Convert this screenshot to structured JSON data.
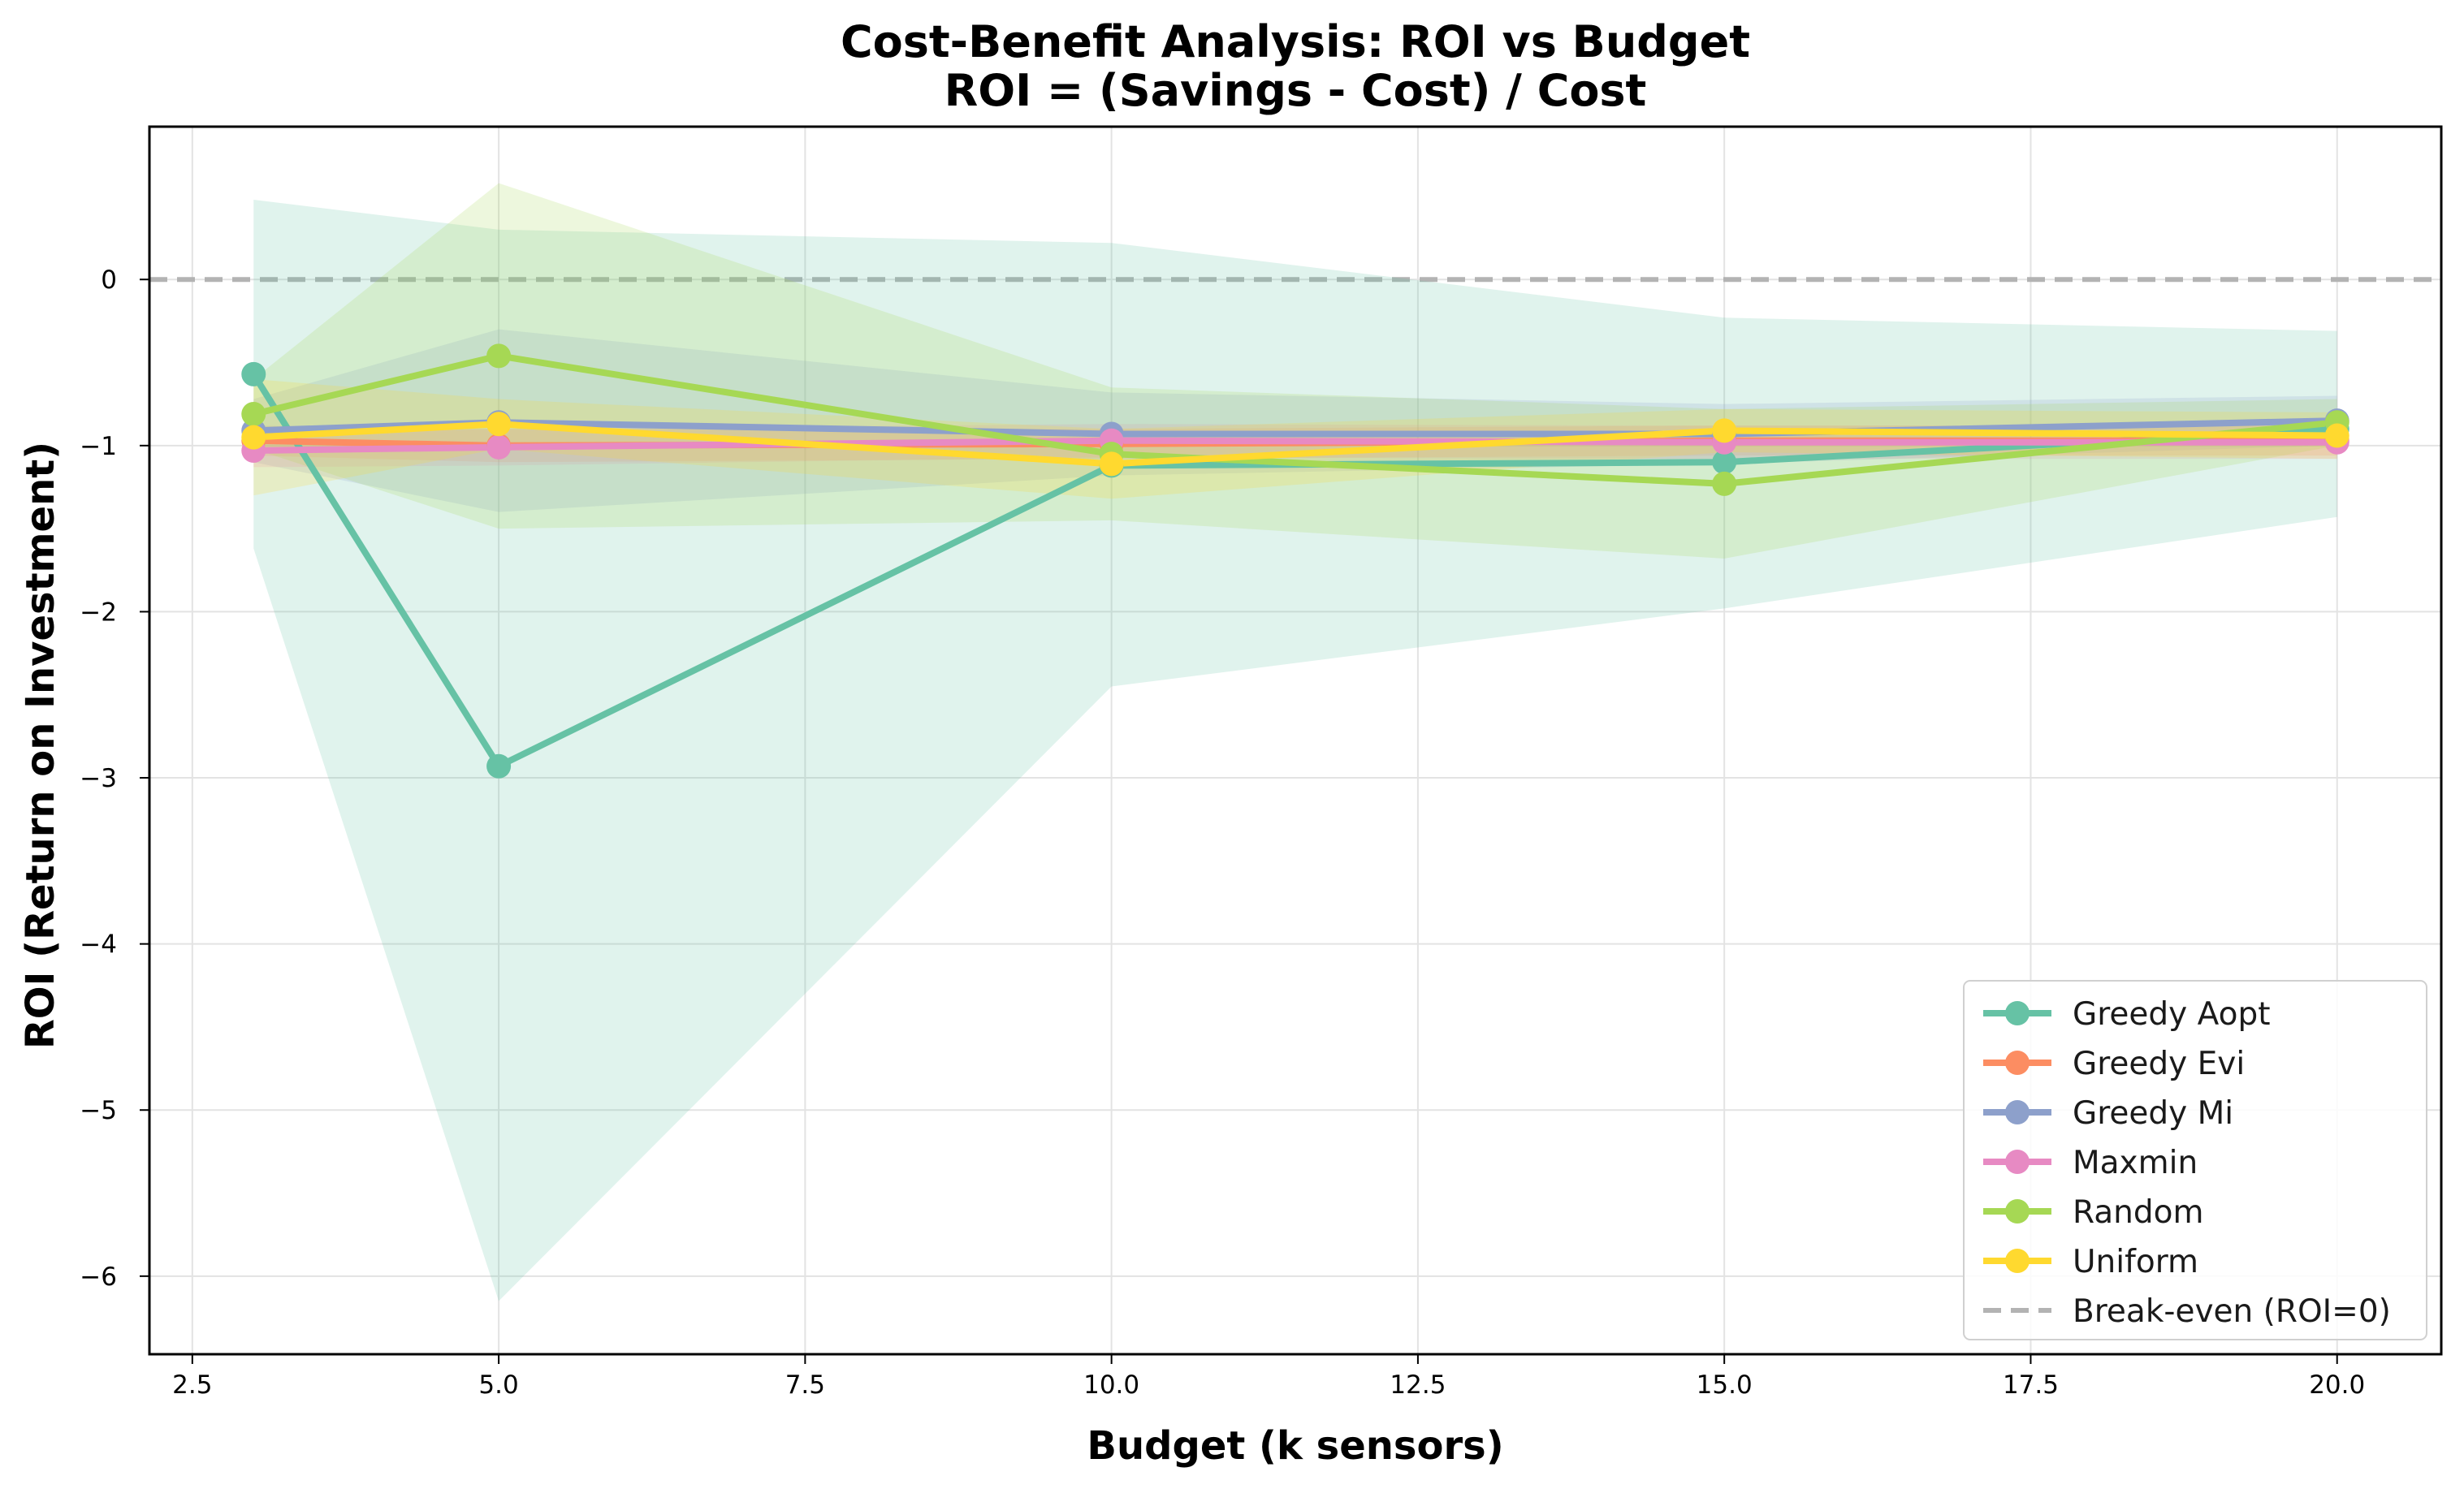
{
  "chart_data": {
    "type": "line",
    "title": "Cost-Benefit Analysis: ROI vs Budget",
    "subtitle": "ROI = (Savings - Cost) / Cost",
    "xlabel": "Budget (k sensors)",
    "ylabel": "ROI (Return on Investment)",
    "x": [
      3,
      5,
      10,
      15,
      20
    ],
    "xlim": [
      2.15,
      20.85
    ],
    "ylim": [
      -6.47,
      0.92
    ],
    "x_ticks": [
      2.5,
      5.0,
      7.5,
      10.0,
      12.5,
      15.0,
      17.5,
      20.0
    ],
    "x_tick_labels": [
      "2.5",
      "5.0",
      "7.5",
      "10.0",
      "12.5",
      "15.0",
      "17.5",
      "20.0"
    ],
    "y_ticks": [
      0,
      -1,
      -2,
      -3,
      -4,
      -5,
      -6
    ],
    "y_tick_labels": [
      "0",
      "−1",
      "−2",
      "−3",
      "−4",
      "−5",
      "−6"
    ],
    "grid": true,
    "legend_position": "bottom-right",
    "reference_line": {
      "name": "Break-even (ROI=0)",
      "y": 0,
      "color": "#b3b3b3",
      "style": "dashed"
    },
    "series": [
      {
        "name": "Greedy Aopt",
        "color": "#66c2a5",
        "values": [
          -0.57,
          -2.93,
          -1.12,
          -1.1,
          -0.9
        ],
        "band_upper": [
          0.48,
          0.3,
          0.22,
          -0.23,
          -0.31
        ],
        "band_lower": [
          -1.62,
          -6.15,
          -2.45,
          -1.98,
          -1.43
        ]
      },
      {
        "name": "Greedy Evi",
        "color": "#fc8d62",
        "values": [
          -0.97,
          -1.0,
          -0.99,
          -0.97,
          -0.97
        ],
        "band_upper": [
          -0.88,
          -0.9,
          -0.9,
          -0.88,
          -0.88
        ],
        "band_lower": [
          -1.06,
          -1.1,
          -1.08,
          -1.06,
          -1.06
        ]
      },
      {
        "name": "Greedy Mi",
        "color": "#8da0cb",
        "values": [
          -0.91,
          -0.86,
          -0.93,
          -0.93,
          -0.85
        ],
        "band_upper": [
          -0.72,
          -0.3,
          -0.68,
          -0.75,
          -0.7
        ],
        "band_lower": [
          -1.1,
          -1.4,
          -1.18,
          -1.11,
          -1.0
        ]
      },
      {
        "name": "Maxmin",
        "color": "#e78ac3",
        "values": [
          -1.03,
          -1.01,
          -0.97,
          -0.98,
          -0.98
        ],
        "band_upper": [
          -0.93,
          -0.9,
          -0.87,
          -0.88,
          -0.88
        ],
        "band_lower": [
          -1.13,
          -1.12,
          -1.07,
          -1.08,
          -1.08
        ]
      },
      {
        "name": "Random",
        "color": "#a6d854",
        "values": [
          -0.81,
          -0.46,
          -1.05,
          -1.23,
          -0.86
        ],
        "band_upper": [
          -0.6,
          0.58,
          -0.65,
          -0.78,
          -0.72
        ],
        "band_lower": [
          -1.02,
          -1.5,
          -1.45,
          -1.68,
          -1.0
        ]
      },
      {
        "name": "Uniform",
        "color": "#ffd92f",
        "values": [
          -0.95,
          -0.87,
          -1.11,
          -0.91,
          -0.94
        ],
        "band_upper": [
          -0.6,
          -0.72,
          -0.9,
          -0.78,
          -0.8
        ],
        "band_lower": [
          -1.3,
          -1.02,
          -1.32,
          -1.04,
          -1.08
        ]
      }
    ]
  }
}
